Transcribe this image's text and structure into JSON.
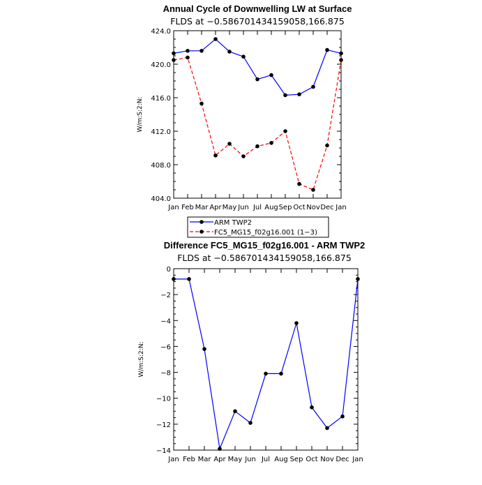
{
  "chart_data": [
    {
      "type": "line",
      "title": "Annual Cycle of Downwelling LW at Surface",
      "subtitle": "FLDS at −0.586701434159058,166.875",
      "ylabel": "W/m:S:2:N:",
      "categories": [
        "Jan",
        "Feb",
        "Mar",
        "Apr",
        "May",
        "Jun",
        "Jul",
        "Aug",
        "Sep",
        "Oct",
        "Nov",
        "Dec",
        "Jan"
      ],
      "ylim": [
        404.0,
        424.0
      ],
      "yticks": [
        404.0,
        408.0,
        412.0,
        416.0,
        420.0,
        424.0
      ],
      "ytick_labels": [
        "404.0",
        "408.0",
        "412.0",
        "416.0",
        "420.0",
        "424.0"
      ],
      "series": [
        {
          "name": "ARM TWP2",
          "color": "#0000ff",
          "dash": "solid",
          "values": [
            421.3,
            421.6,
            421.6,
            423.0,
            421.5,
            420.9,
            418.2,
            418.7,
            416.3,
            416.4,
            417.3,
            421.7,
            421.3
          ]
        },
        {
          "name": "FC5_MG15_f02g16.001 (1−3)",
          "color": "#ff0000",
          "dash": "dashed",
          "values": [
            420.5,
            420.8,
            415.3,
            409.1,
            410.5,
            409.0,
            410.2,
            410.6,
            412.0,
            405.7,
            405.0,
            410.3,
            420.5
          ]
        }
      ],
      "legend": "below"
    },
    {
      "type": "line",
      "title": "Difference FC5_MG15_f02g16.001 - ARM TWP2",
      "subtitle": "FLDS at −0.586701434159058,166.875",
      "ylabel": "W/m:S:2:N:",
      "categories": [
        "Jan",
        "Feb",
        "Mar",
        "Apr",
        "May",
        "Jun",
        "Jul",
        "Aug",
        "Sep",
        "Oct",
        "Nov",
        "Dec",
        "Jan"
      ],
      "ylim": [
        -14,
        0
      ],
      "yticks": [
        -14,
        -12,
        -10,
        -8,
        -6,
        -4,
        -2,
        0
      ],
      "ytick_labels": [
        "−14",
        "−12",
        "−10",
        "−8",
        "−6",
        "−4",
        "−2",
        "0"
      ],
      "series": [
        {
          "color": "#0000ff",
          "dash": "solid",
          "values": [
            -0.8,
            -0.8,
            -6.2,
            -13.9,
            -11.0,
            -11.9,
            -8.1,
            -8.1,
            -4.2,
            -10.7,
            -12.3,
            -11.4,
            -0.8
          ]
        }
      ]
    }
  ]
}
